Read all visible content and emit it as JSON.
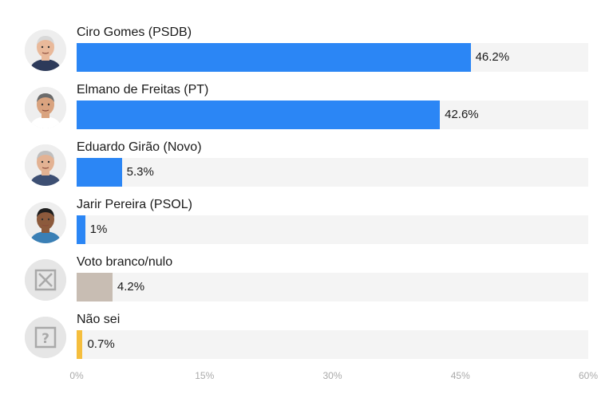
{
  "chart_data": {
    "type": "bar",
    "orientation": "horizontal",
    "categories": [
      "Ciro Gomes (PSDB)",
      "Elmano de Freitas (PT)",
      "Eduardo Girão (Novo)",
      "Jarir Pereira (PSOL)",
      "Voto branco/nulo",
      "Não sei"
    ],
    "values": [
      46.2,
      42.6,
      5.3,
      1,
      4.2,
      0.7
    ],
    "value_labels": [
      "46.2%",
      "42.6%",
      "5.3%",
      "1%",
      "4.2%",
      "0.7%"
    ],
    "bar_colors": [
      "#2b86f5",
      "#2b86f5",
      "#2b86f5",
      "#2b86f5",
      "#c8bdb3",
      "#f5be3d"
    ],
    "icons": [
      "candidate-photo-icon",
      "candidate-photo-icon",
      "candidate-photo-icon",
      "candidate-photo-icon",
      "x-box-icon",
      "question-box-icon"
    ],
    "xlim": [
      0,
      60
    ],
    "xticks": [
      0,
      15,
      30,
      45,
      60
    ],
    "xtick_labels": [
      "0%",
      "15%",
      "30%",
      "45%",
      "60%"
    ],
    "grid": false,
    "legend": "none",
    "track_color": "#f4f4f4"
  }
}
